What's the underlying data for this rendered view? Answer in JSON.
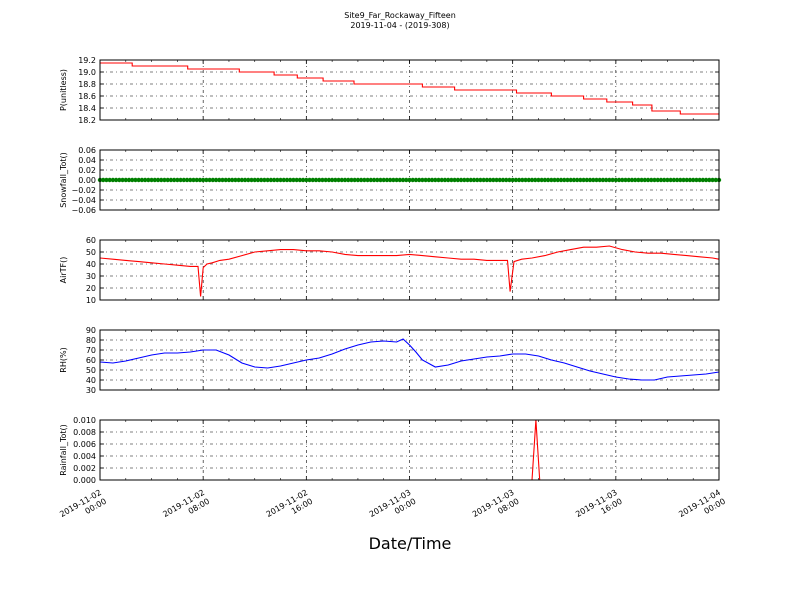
{
  "title": "Site9_Far_Rockaway_Fifteen",
  "subtitle": "2019-11-04 - (2019-308)",
  "xlabel": "Date/Time",
  "x_ticks": [
    [
      "2019-11-02",
      "00:00"
    ],
    [
      "2019-11-02",
      "08:00"
    ],
    [
      "2019-11-02",
      "16:00"
    ],
    [
      "2019-11-03",
      "00:00"
    ],
    [
      "2019-11-03",
      "08:00"
    ],
    [
      "2019-11-03",
      "16:00"
    ],
    [
      "2019-11-04",
      "00:00"
    ]
  ],
  "chart_data": [
    {
      "type": "line",
      "name": "pressure",
      "ylabel": "P(unitless)",
      "color": "#ff0000",
      "ylim": [
        18.2,
        19.2
      ],
      "yticks": [
        "19.2",
        "19.0",
        "18.8",
        "18.6",
        "18.4",
        "18.2"
      ],
      "xlim": [
        "2019-11-02 00:00",
        "2019-11-04 00:00"
      ],
      "grid": true,
      "x_hours": [
        0,
        2.5,
        2.5,
        6.8,
        6.8,
        10.8,
        10.8,
        13.5,
        13.5,
        15.3,
        15.3,
        17.3,
        17.3,
        19.7,
        19.7,
        25.0,
        25.0,
        27.5,
        27.5,
        32.3,
        32.3,
        35.0,
        35.0,
        37.5,
        37.5,
        39.3,
        39.3,
        41.3,
        41.3,
        42.8,
        42.8,
        45.0,
        45.0,
        48.0
      ],
      "values": [
        19.15,
        19.15,
        19.1,
        19.1,
        19.05,
        19.05,
        19.0,
        19.0,
        18.95,
        18.95,
        18.9,
        18.9,
        18.85,
        18.85,
        18.8,
        18.8,
        18.75,
        18.75,
        18.7,
        18.7,
        18.65,
        18.65,
        18.6,
        18.6,
        18.55,
        18.55,
        18.5,
        18.5,
        18.45,
        18.45,
        18.35,
        18.35,
        18.3,
        18.3
      ]
    },
    {
      "type": "line",
      "name": "snowfall",
      "ylabel": "Snowfall_Tot()",
      "color": "#008000",
      "ylim": [
        -0.06,
        0.06
      ],
      "yticks": [
        "0.06",
        "0.04",
        "0.02",
        "0.00",
        "−0.02",
        "−0.04",
        "−0.06"
      ],
      "xlim": [
        "2019-11-02 00:00",
        "2019-11-04 00:00"
      ],
      "grid": true,
      "markers": true,
      "x_hours": [
        0,
        48
      ],
      "values": [
        0.0,
        0.0
      ]
    },
    {
      "type": "line",
      "name": "air-temperature",
      "ylabel": "AirTF()",
      "color": "#ff0000",
      "ylim": [
        10,
        60
      ],
      "yticks": [
        "60",
        "50",
        "40",
        "30",
        "20",
        "10"
      ],
      "xlim": [
        "2019-11-02 00:00",
        "2019-11-04 00:00"
      ],
      "grid": true,
      "x_hours": [
        0,
        1,
        2,
        3,
        4,
        5,
        6,
        7,
        7.6,
        7.8,
        8.0,
        8.3,
        8.7,
        9.3,
        10,
        11,
        12,
        13,
        14,
        15,
        16,
        17,
        18,
        19,
        20,
        21,
        22,
        23,
        24,
        25,
        26,
        27,
        28,
        29,
        30,
        31,
        31.6,
        31.8,
        32.1,
        32.7,
        33.5,
        34.5,
        35.5,
        36.5,
        37.5,
        38.5,
        39.5,
        40.5,
        41.5,
        42.5,
        43.5,
        44.5,
        45.5,
        46.5,
        47.5,
        48
      ],
      "values": [
        45,
        44,
        43,
        42,
        41,
        40,
        39,
        38,
        38,
        13,
        37,
        40,
        41,
        43,
        44,
        47,
        50,
        51,
        52,
        52,
        51,
        51,
        50,
        48,
        47,
        47,
        47,
        47,
        48,
        47,
        46,
        45,
        44,
        44,
        43,
        43,
        43,
        17,
        42,
        44,
        45,
        47,
        50,
        52,
        54,
        54,
        55,
        52,
        50,
        49,
        49,
        48,
        47,
        46,
        45,
        44
      ]
    },
    {
      "type": "line",
      "name": "relative-humidity",
      "ylabel": "RH(%)",
      "color": "#0000ff",
      "ylim": [
        30,
        90
      ],
      "yticks": [
        "90",
        "80",
        "70",
        "60",
        "50",
        "40",
        "30"
      ],
      "xlim": [
        "2019-11-02 00:00",
        "2019-11-04 00:00"
      ],
      "grid": true,
      "x_hours": [
        0,
        1,
        2,
        3,
        4,
        5,
        6,
        7,
        8,
        9,
        10,
        11,
        12,
        13,
        14,
        15,
        16,
        17,
        18,
        19,
        20,
        21,
        22,
        23,
        23.5,
        24,
        24.5,
        25,
        26,
        27,
        28,
        29,
        30,
        31,
        32,
        33,
        34,
        35,
        36,
        37,
        38,
        39,
        40,
        41,
        42,
        43,
        44,
        45,
        46,
        47,
        48
      ],
      "values": [
        58,
        57,
        59,
        62,
        65,
        67,
        67,
        68,
        70,
        70,
        65,
        57,
        53,
        52,
        54,
        57,
        60,
        62,
        66,
        71,
        75,
        78,
        79,
        78,
        81,
        75,
        68,
        60,
        53,
        55,
        59,
        61,
        63,
        64,
        66,
        66,
        64,
        60,
        57,
        53,
        49,
        46,
        43,
        41,
        40,
        40,
        43,
        44,
        45,
        46,
        48
      ]
    },
    {
      "type": "line",
      "name": "rainfall",
      "ylabel": "Rainfall_Tot()",
      "color": "#ff0000",
      "ylim": [
        0.0,
        0.01
      ],
      "yticks": [
        "0.010",
        "0.008",
        "0.006",
        "0.004",
        "0.002",
        "0.000"
      ],
      "xlim": [
        "2019-11-02 00:00",
        "2019-11-04 00:00"
      ],
      "grid": true,
      "x_hours": [
        0,
        33.5,
        33.8,
        34.1,
        48
      ],
      "values": [
        0,
        0,
        0.01,
        0,
        0
      ]
    }
  ]
}
